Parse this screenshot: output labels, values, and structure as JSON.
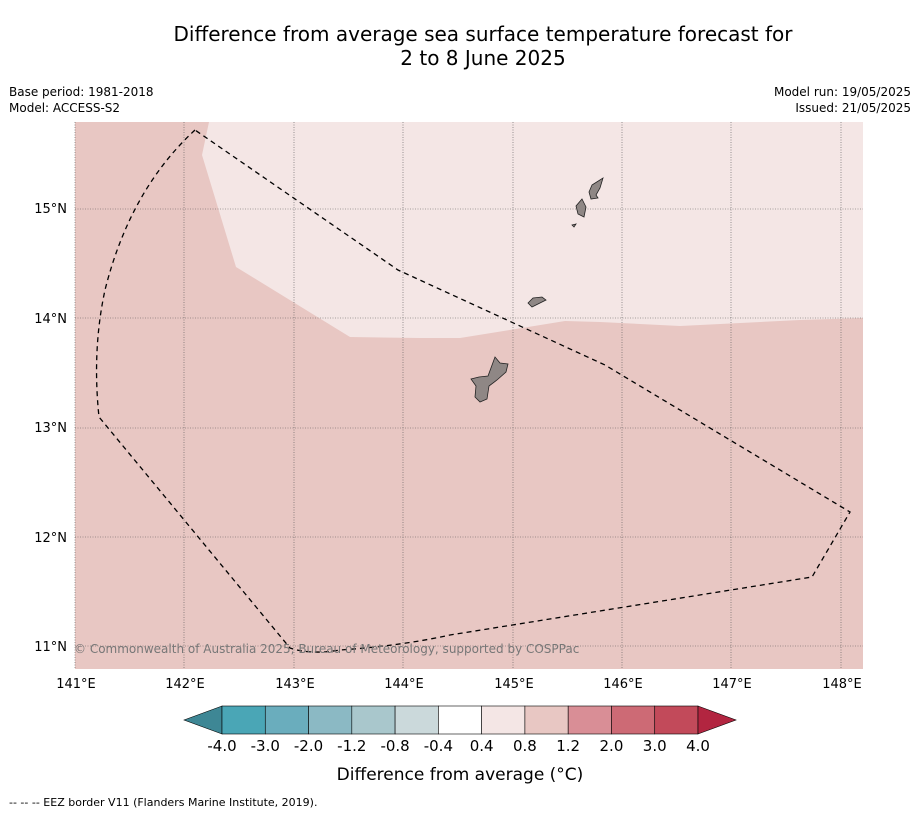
{
  "title": {
    "line1": "Difference from average sea surface temperature forecast for",
    "line2": "2 to 8 June 2025"
  },
  "meta": {
    "base_period": "Base period: 1981-2018",
    "model": "Model: ACCESS-S2",
    "model_run": "Model run: 19/05/2025",
    "issued": "Issued: 21/05/2025"
  },
  "map": {
    "lon_ticks": [
      "141°E",
      "142°E",
      "143°E",
      "144°E",
      "145°E",
      "146°E",
      "147°E",
      "148°E"
    ],
    "lat_ticks": [
      "15°N",
      "14°N",
      "13°N",
      "12°N",
      "11°N"
    ],
    "copyright": "© Commonwealth of Australia 2025, Bureau of Meteorology, supported by COSPPac",
    "fill_colors": {
      "anomaly_0_4_to_0_8": "#f4e6e5",
      "anomaly_0_8_to_1_2": "#e8c7c3",
      "land": "#8f8785"
    }
  },
  "colorbar": {
    "label": "Difference from average (°C)",
    "ticks": [
      "-4.0",
      "-3.0",
      "-2.0",
      "-1.2",
      "-0.8",
      "-0.4",
      "0.4",
      "0.8",
      "1.2",
      "2.0",
      "3.0",
      "4.0"
    ],
    "colors": [
      "#4aa6b6",
      "#6aadbd",
      "#8bb9c4",
      "#a9c7cc",
      "#cbd9db",
      "#ffffff",
      "#f4e6e5",
      "#e8c7c3",
      "#d98e96",
      "#cd6a75",
      "#c24a5a"
    ],
    "under_color": "#3e8795",
    "over_color": "#b22540"
  },
  "legend": {
    "eez_line": "--  --  -- EEZ border V11 (Flanders Marine Institute, 2019)."
  }
}
